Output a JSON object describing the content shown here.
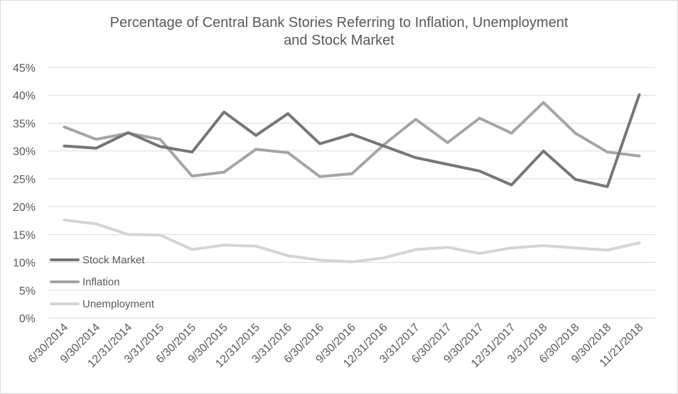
{
  "chart_data": {
    "type": "line",
    "title": "Percentage of Central Bank Stories Referring to Inflation, Unemployment and Stock Market",
    "title_lines": [
      "Percentage of Central Bank Stories Referring to Inflation, Unemployment",
      "and Stock Market"
    ],
    "categories": [
      "6/30/2014",
      "9/30/2014",
      "12/31/2014",
      "3/31/2015",
      "6/30/2015",
      "9/30/2015",
      "12/31/2015",
      "3/31/2016",
      "6/30/2016",
      "9/30/2016",
      "12/31/2016",
      "3/31/2017",
      "6/30/2017",
      "9/30/2017",
      "12/31/2017",
      "3/31/2018",
      "6/30/2018",
      "9/30/2018",
      "11/21/2018"
    ],
    "ylim": [
      0,
      45
    ],
    "yticks": [
      0,
      5,
      10,
      15,
      20,
      25,
      30,
      35,
      40,
      45
    ],
    "ytick_labels": [
      "0%",
      "5%",
      "10%",
      "15%",
      "20%",
      "25%",
      "30%",
      "35%",
      "40%",
      "45%"
    ],
    "grid": true,
    "legend_position": "left-middle",
    "series": [
      {
        "name": "Stock Market",
        "color": "#767676",
        "values": [
          30.9,
          30.5,
          33.3,
          30.8,
          29.8,
          37.0,
          32.8,
          36.7,
          31.3,
          33.0,
          30.9,
          28.8,
          27.6,
          26.4,
          23.9,
          30.0,
          24.9,
          23.6,
          40.1
        ]
      },
      {
        "name": "Inflation",
        "color": "#a5a5a5",
        "values": [
          34.3,
          32.1,
          33.2,
          32.1,
          25.5,
          26.2,
          30.3,
          29.7,
          25.4,
          25.9,
          31.1,
          35.7,
          31.5,
          35.9,
          33.2,
          38.7,
          33.2,
          29.8,
          29.1
        ]
      },
      {
        "name": "Unemployment",
        "color": "#d4d4d4",
        "values": [
          17.6,
          16.9,
          15.0,
          14.9,
          12.3,
          13.1,
          12.9,
          11.2,
          10.4,
          10.1,
          10.8,
          12.3,
          12.7,
          11.6,
          12.6,
          13.0,
          12.6,
          12.2,
          13.5
        ]
      }
    ]
  }
}
